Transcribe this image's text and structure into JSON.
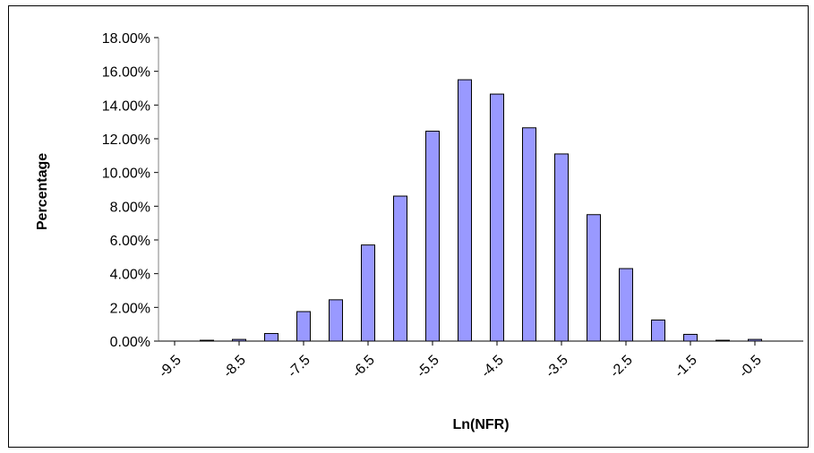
{
  "chart_data": {
    "type": "bar",
    "xlabel": "Ln(NFR)",
    "ylabel": "Percentage",
    "ylim": [
      0,
      18
    ],
    "yticks": [
      "0.00%",
      "2.00%",
      "4.00%",
      "6.00%",
      "8.00%",
      "10.00%",
      "12.00%",
      "14.00%",
      "16.00%",
      "18.00%"
    ],
    "xtick_labels": [
      "-9.5",
      "-8.5",
      "-7.5",
      "-6.5",
      "-5.5",
      "-4.5",
      "-3.5",
      "-2.5",
      "-1.5",
      "-0.5"
    ],
    "categories": [
      "-9.5",
      "-9",
      "-8.5",
      "-8",
      "-7.5",
      "-7",
      "-6.5",
      "-6",
      "-5.5",
      "-5",
      "-4.5",
      "-4",
      "-3.5",
      "-3",
      "-2.5",
      "-2",
      "-1.5",
      "-1",
      "-0.5",
      "0"
    ],
    "values": [
      0.0,
      0.05,
      0.1,
      0.45,
      1.75,
      2.45,
      5.7,
      8.6,
      12.45,
      15.5,
      14.65,
      12.65,
      11.1,
      7.5,
      4.3,
      1.25,
      0.4,
      0.05,
      0.1,
      0.0
    ],
    "grid": false,
    "legend": "none",
    "colors": {
      "bar_fill": "#9999ff",
      "bar_stroke": "#000000"
    }
  }
}
